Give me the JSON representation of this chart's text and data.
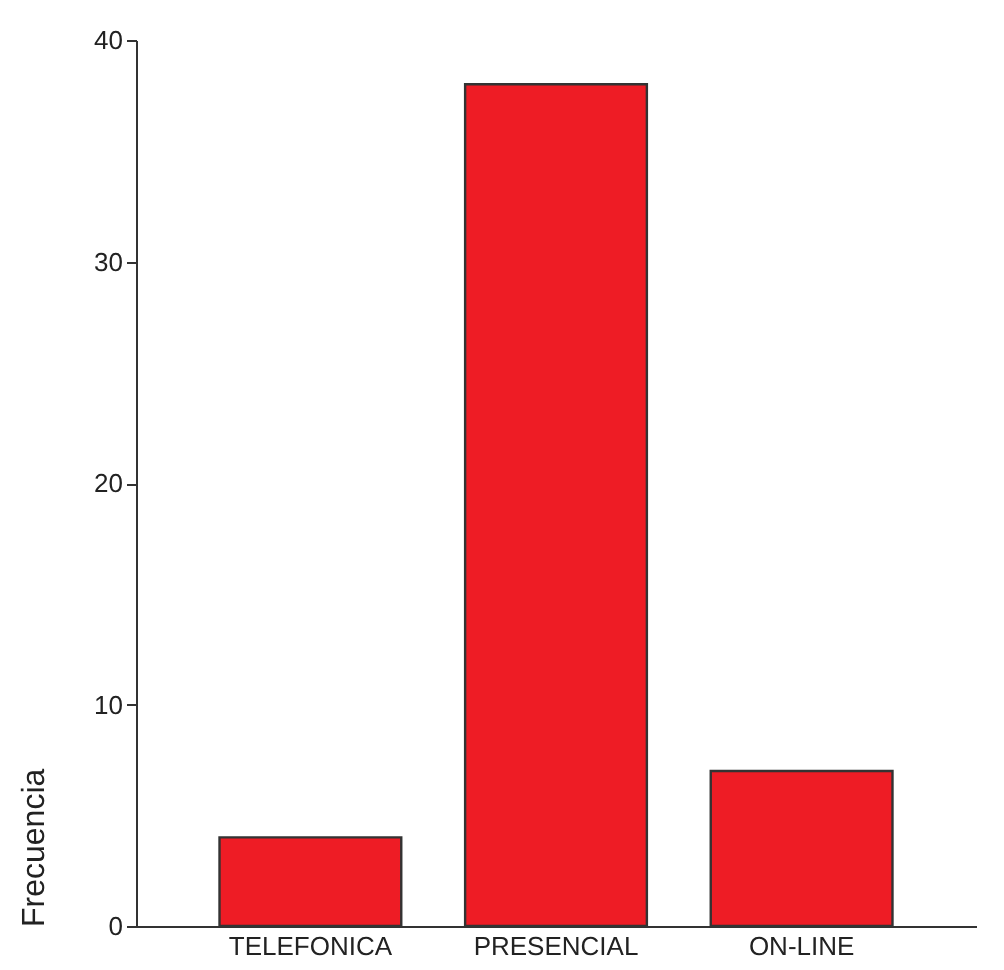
{
  "chart_data": {
    "type": "bar",
    "ylabel": "Frecuencia",
    "categories": [
      "TELEFONICA",
      "PRESENCIAL",
      "ON-LINE"
    ],
    "values": [
      4,
      38,
      7
    ],
    "color": "#ee1c25",
    "ylim": [
      0,
      40
    ],
    "yticks": [
      0,
      10,
      20,
      30,
      40
    ],
    "grid": false
  }
}
